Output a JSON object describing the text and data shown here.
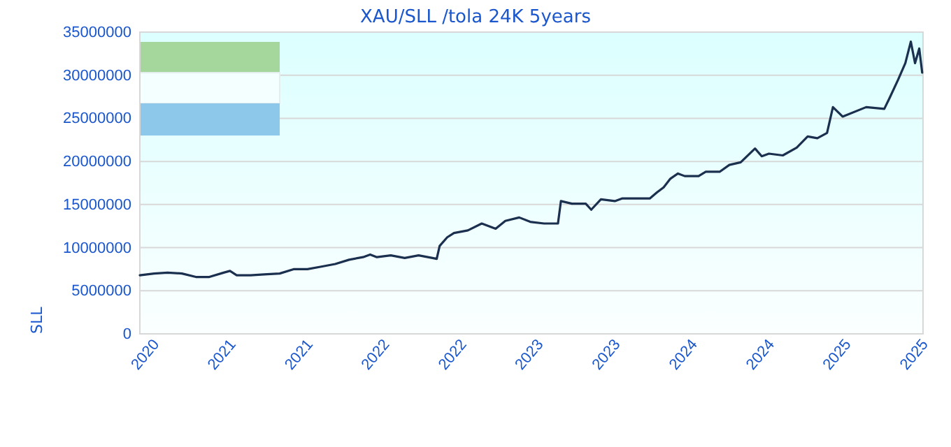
{
  "chart_data": {
    "type": "line",
    "title": "XAU/SLL /tola 24K 5years",
    "ylabel": "SLL",
    "xlim": [
      "2020-10-15",
      "2025-11-18"
    ],
    "xticks": [
      {
        "value": "2020-10-15",
        "label": "2020"
      },
      {
        "value": "2021-04-15",
        "label": "2021"
      },
      {
        "value": "2021-10-15",
        "label": "2021"
      },
      {
        "value": "2022-04-15",
        "label": "2022"
      },
      {
        "value": "2022-10-15",
        "label": "2022"
      },
      {
        "value": "2023-04-15",
        "label": "2023"
      },
      {
        "value": "2023-10-15",
        "label": "2023"
      },
      {
        "value": "2024-04-15",
        "label": "2024"
      },
      {
        "value": "2024-10-15",
        "label": "2024"
      },
      {
        "value": "2025-04-15",
        "label": "2025"
      },
      {
        "value": "2025-10-15",
        "label": "2025"
      }
    ],
    "ylim": [
      0,
      35000000
    ],
    "yticks": [
      0,
      5000000,
      10000000,
      15000000,
      20000000,
      25000000,
      30000000,
      35000000
    ],
    "grid": "y",
    "marker": "none",
    "line_style": "solid",
    "x": [
      "2020-10-15",
      "2020-11-18",
      "2020-12-20",
      "2021-01-23",
      "2021-02-25",
      "2021-03-29",
      "2021-05-02",
      "2021-05-17",
      "2021-06-02",
      "2021-07-05",
      "2021-08-06",
      "2021-09-12",
      "2021-10-15",
      "2021-11-17",
      "2021-12-20",
      "2022-01-22",
      "2022-02-24",
      "2022-03-29",
      "2022-04-15",
      "2022-05-01",
      "2022-06-03",
      "2022-07-06",
      "2022-08-08",
      "2022-09-10",
      "2022-09-20",
      "2022-09-27",
      "2022-10-15",
      "2022-10-31",
      "2022-12-03",
      "2023-01-05",
      "2023-02-07",
      "2023-03-02",
      "2023-04-04",
      "2023-04-30",
      "2023-06-02",
      "2023-07-05",
      "2023-07-12",
      "2023-08-07",
      "2023-09-09",
      "2023-09-22",
      "2023-10-15",
      "2023-11-17",
      "2023-12-04",
      "2024-01-06",
      "2024-02-08",
      "2024-02-25",
      "2024-03-12",
      "2024-03-28",
      "2024-04-15",
      "2024-05-01",
      "2024-06-03",
      "2024-06-20",
      "2024-07-23",
      "2024-08-15",
      "2024-09-11",
      "2024-10-15",
      "2024-10-31",
      "2024-11-17",
      "2024-12-20",
      "2025-01-22",
      "2025-02-17",
      "2025-03-12",
      "2025-04-04",
      "2025-04-18",
      "2025-05-11",
      "2025-07-06",
      "2025-08-18",
      "2025-08-31",
      "2025-09-20",
      "2025-10-07",
      "2025-10-20",
      "2025-10-30",
      "2025-11-09",
      "2025-11-16"
    ],
    "series": [
      {
        "color": "#1b2f4f",
        "values": [
          6800000,
          7000000,
          7100000,
          7000000,
          6600000,
          6600000,
          7100000,
          7300000,
          6800000,
          6800000,
          6900000,
          7000000,
          7500000,
          7500000,
          7800000,
          8100000,
          8600000,
          8900000,
          9200000,
          8900000,
          9100000,
          8800000,
          9100000,
          8800000,
          8700000,
          10200000,
          11200000,
          11700000,
          12000000,
          12800000,
          12200000,
          13100000,
          13500000,
          13000000,
          12800000,
          12800000,
          15400000,
          15100000,
          15100000,
          14400000,
          15600000,
          15400000,
          15700000,
          15700000,
          15700000,
          16400000,
          17000000,
          18000000,
          18600000,
          18300000,
          18300000,
          18800000,
          18800000,
          19600000,
          19900000,
          21500000,
          20600000,
          20900000,
          20700000,
          21600000,
          22900000,
          22700000,
          23300000,
          26300000,
          25200000,
          26300000,
          26100000,
          27400000,
          29500000,
          31400000,
          33900000,
          31400000,
          33100000,
          30300000
        ]
      }
    ]
  }
}
